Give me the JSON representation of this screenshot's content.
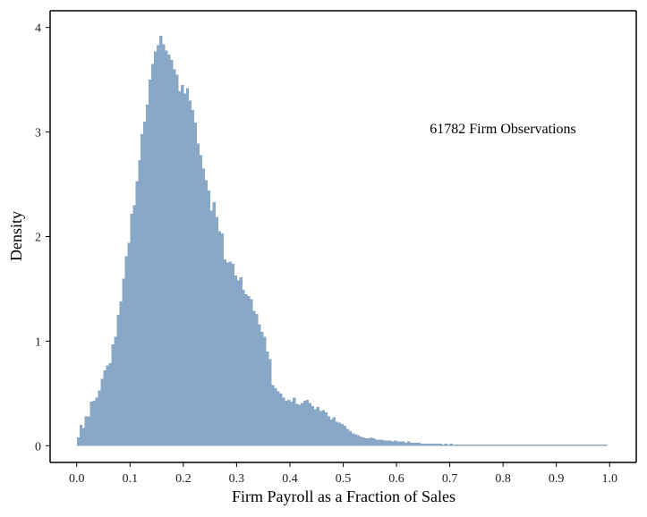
{
  "chart_data": {
    "type": "bar",
    "title": "",
    "xlabel": "Firm Payroll as a Fraction of Sales",
    "ylabel": "Density",
    "xlim": [
      -0.05,
      1.05
    ],
    "ylim": [
      -0.16,
      4.16
    ],
    "xticks": [
      "0.0",
      "0.1",
      "0.2",
      "0.3",
      "0.4",
      "0.5",
      "0.6",
      "0.7",
      "0.8",
      "0.9",
      "1.0"
    ],
    "yticks": [
      "0",
      "1",
      "2",
      "3",
      "4"
    ],
    "annotation": "61782 Firm Observations",
    "bar_color": "#89a7c6",
    "bin_width": 0.005,
    "bin_start": 0.0,
    "grid": false,
    "values": [
      0.08,
      0.2,
      0.17,
      0.28,
      0.28,
      0.42,
      0.43,
      0.46,
      0.53,
      0.64,
      0.72,
      0.77,
      0.79,
      0.97,
      1.04,
      1.25,
      1.38,
      1.6,
      1.81,
      1.94,
      2.22,
      2.3,
      2.53,
      2.73,
      2.98,
      3.1,
      3.26,
      3.5,
      3.65,
      3.77,
      3.83,
      3.92,
      3.84,
      3.78,
      3.74,
      3.69,
      3.6,
      3.55,
      3.39,
      3.45,
      3.37,
      3.42,
      3.3,
      3.21,
      3.09,
      2.89,
      2.78,
      2.65,
      2.54,
      2.44,
      2.25,
      2.33,
      2.19,
      2.05,
      2.03,
      1.78,
      1.75,
      1.76,
      1.74,
      1.63,
      1.58,
      1.61,
      1.49,
      1.45,
      1.43,
      1.4,
      1.29,
      1.26,
      1.16,
      1.09,
      1.04,
      0.9,
      0.83,
      0.58,
      0.55,
      0.52,
      0.5,
      0.46,
      0.43,
      0.44,
      0.42,
      0.46,
      0.4,
      0.39,
      0.41,
      0.43,
      0.44,
      0.41,
      0.38,
      0.35,
      0.37,
      0.33,
      0.34,
      0.32,
      0.28,
      0.25,
      0.27,
      0.23,
      0.22,
      0.21,
      0.19,
      0.16,
      0.14,
      0.12,
      0.11,
      0.1,
      0.09,
      0.08,
      0.07,
      0.07,
      0.08,
      0.07,
      0.06,
      0.06,
      0.06,
      0.05,
      0.05,
      0.05,
      0.04,
      0.05,
      0.04,
      0.04,
      0.04,
      0.03,
      0.04,
      0.03,
      0.03,
      0.03,
      0.03,
      0.02,
      0.02,
      0.02,
      0.02,
      0.02,
      0.02,
      0.02,
      0.02,
      0.01,
      0.02,
      0.01,
      0.02,
      0.01,
      0.01,
      0.01,
      0.01,
      0.01,
      0.01,
      0.01,
      0.01,
      0.01,
      0.01,
      0.01,
      0.01,
      0.01,
      0.01,
      0.01,
      0.01,
      0.01,
      0.01,
      0.01,
      0.01,
      0.01,
      0.01,
      0.01,
      0.01,
      0.01,
      0.01,
      0.01,
      0.01,
      0.01,
      0.01,
      0.01,
      0.01,
      0.01,
      0.01,
      0.01,
      0.01,
      0.01,
      0.01,
      0.01,
      0.01,
      0.01,
      0.01,
      0.01,
      0.01,
      0.01,
      0.01,
      0.01,
      0.01,
      0.01,
      0.01,
      0.01,
      0.01,
      0.01,
      0.01,
      0.01,
      0.01,
      0.01,
      0.01
    ]
  }
}
